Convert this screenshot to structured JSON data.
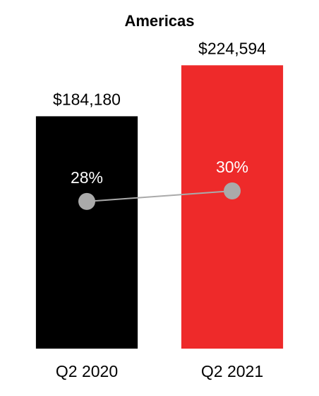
{
  "chart_data": {
    "type": "bar",
    "title": "Americas",
    "categories": [
      "Q2 2020",
      "Q2 2021"
    ],
    "values": [
      184180,
      224594
    ],
    "value_labels": [
      "$184,180",
      "$224,594"
    ],
    "colors": [
      "#000000",
      "#ee2a2a"
    ],
    "ylim": [
      0,
      250000
    ],
    "line": {
      "values": [
        28,
        30
      ],
      "value_labels": [
        "28%",
        "30%"
      ],
      "axis": "y2",
      "color": "#aaaaaa"
    },
    "y2lim": [
      0,
      60
    ]
  }
}
